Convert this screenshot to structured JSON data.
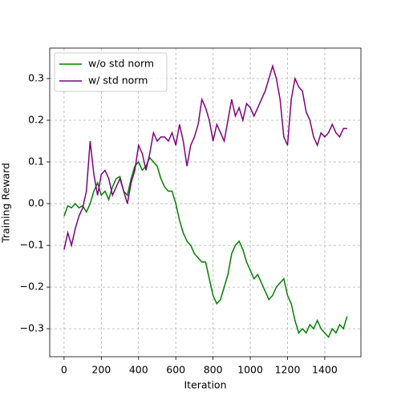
{
  "chart_data": {
    "type": "line",
    "xlabel": "Iteration",
    "ylabel": "Training Reward",
    "x": [
      0,
      20,
      40,
      60,
      80,
      100,
      120,
      140,
      160,
      180,
      200,
      220,
      240,
      260,
      280,
      300,
      320,
      340,
      360,
      380,
      400,
      420,
      440,
      460,
      480,
      500,
      520,
      540,
      560,
      580,
      600,
      620,
      640,
      660,
      680,
      700,
      720,
      740,
      760,
      780,
      800,
      820,
      840,
      860,
      880,
      900,
      920,
      940,
      960,
      980,
      1000,
      1020,
      1040,
      1060,
      1080,
      1100,
      1120,
      1140,
      1160,
      1180,
      1200,
      1220,
      1240,
      1260,
      1280,
      1300,
      1320,
      1340,
      1360,
      1380,
      1400,
      1420,
      1440,
      1460,
      1480,
      1500,
      1520
    ],
    "series": [
      {
        "name": "w/o std norm",
        "color": "#008000",
        "values": [
          -0.03,
          -0.005,
          -0.01,
          0.0,
          -0.01,
          -0.005,
          -0.02,
          0.0,
          0.03,
          0.05,
          0.02,
          0.03,
          0.01,
          0.04,
          0.06,
          0.065,
          0.03,
          0.02,
          0.06,
          0.09,
          0.1,
          0.08,
          0.09,
          0.11,
          0.1,
          0.09,
          0.06,
          0.04,
          0.03,
          0.03,
          0.0,
          -0.04,
          -0.07,
          -0.09,
          -0.1,
          -0.12,
          -0.13,
          -0.14,
          -0.14,
          -0.18,
          -0.22,
          -0.24,
          -0.23,
          -0.2,
          -0.17,
          -0.12,
          -0.1,
          -0.09,
          -0.11,
          -0.14,
          -0.16,
          -0.18,
          -0.17,
          -0.19,
          -0.21,
          -0.23,
          -0.22,
          -0.2,
          -0.19,
          -0.18,
          -0.22,
          -0.24,
          -0.28,
          -0.31,
          -0.3,
          -0.31,
          -0.29,
          -0.3,
          -0.28,
          -0.3,
          -0.31,
          -0.32,
          -0.3,
          -0.31,
          -0.29,
          -0.3,
          -0.27
        ]
      },
      {
        "name": "w/ std norm",
        "color": "#800080",
        "values": [
          -0.11,
          -0.07,
          -0.1,
          -0.06,
          -0.03,
          -0.01,
          0.03,
          0.15,
          0.07,
          0.02,
          0.07,
          0.08,
          0.06,
          0.02,
          0.04,
          0.06,
          0.03,
          0.0,
          0.05,
          0.08,
          0.14,
          0.12,
          0.08,
          0.12,
          0.17,
          0.15,
          0.16,
          0.16,
          0.15,
          0.17,
          0.14,
          0.19,
          0.15,
          0.09,
          0.14,
          0.16,
          0.19,
          0.25,
          0.23,
          0.2,
          0.15,
          0.19,
          0.17,
          0.15,
          0.2,
          0.25,
          0.21,
          0.23,
          0.2,
          0.24,
          0.23,
          0.21,
          0.23,
          0.25,
          0.27,
          0.3,
          0.33,
          0.3,
          0.25,
          0.16,
          0.14,
          0.25,
          0.3,
          0.28,
          0.27,
          0.22,
          0.2,
          0.16,
          0.14,
          0.17,
          0.16,
          0.17,
          0.19,
          0.17,
          0.16,
          0.18,
          0.18
        ]
      }
    ],
    "xlim": [
      -77,
      1594
    ],
    "ylim": [
      -0.367,
      0.373
    ],
    "xticks": [
      0,
      200,
      400,
      600,
      800,
      1000,
      1200,
      1400
    ],
    "yticks": [
      {
        "value": -0.3,
        "label": "−0.3"
      },
      {
        "value": -0.2,
        "label": "−0.2"
      },
      {
        "value": -0.1,
        "label": "−0.1"
      },
      {
        "value": 0,
        "label": "0.0"
      },
      0.1,
      0.2,
      0.3
    ],
    "grid": true,
    "legend": "upper left"
  }
}
